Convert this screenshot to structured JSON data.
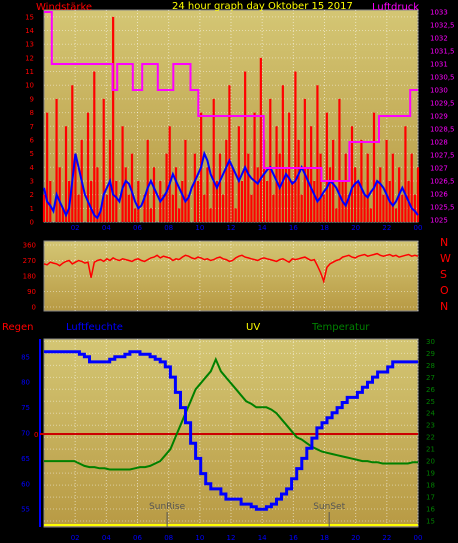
{
  "colors": {
    "wind": "#ff0000",
    "pressure": "#ff00ff",
    "direction": "#ff0000",
    "humidity": "#0000ff",
    "uv": "#ffff00",
    "temperature": "#008000",
    "rain": "#ff0000",
    "plot_bg_top": "#d4c674",
    "plot_bg_bottom": "#b89a44"
  },
  "labels": {
    "windstarke": "Windstärke",
    "title": "24 hour graph day   Oktober 15 2017",
    "luftdruck": "Luftdruck",
    "regen": "Regen",
    "luftfeuchte": "Luftfeuchte",
    "uv": "UV",
    "temperatur": "Temperatur",
    "sunrise": "SunRise",
    "sunset": "SunSet",
    "compass": [
      "N",
      "W",
      "S",
      "O",
      "N"
    ],
    "rain_zero": "0"
  },
  "chart_data": [
    {
      "type": "line",
      "id": "wind_pressure",
      "title": "24 hour graph day   Oktober 15 2017",
      "x_ticks": [
        "02",
        "04",
        "06",
        "08",
        "10",
        "12",
        "14",
        "16",
        "18",
        "20",
        "22",
        "00"
      ],
      "x_range_hours": [
        0,
        24
      ],
      "left_axis": {
        "label": "Windstärke",
        "ticks": [
          0,
          1,
          2,
          3,
          4,
          5,
          6,
          7,
          8,
          9,
          10,
          11,
          12,
          13,
          14,
          15
        ],
        "ylim": [
          0,
          15.5
        ]
      },
      "right_axis": {
        "label": "Luftdruck",
        "ticks": [
          "1025",
          "1025,5",
          "1026",
          "1026,5",
          "1027",
          "1027,5",
          "1028",
          "1028,5",
          "1029",
          "1029,5",
          "1030",
          "1030,5",
          "1031",
          "1031,5",
          "1032",
          "1032,5",
          "1033"
        ],
        "ylim": [
          1025,
          1033
        ]
      },
      "series": [
        {
          "name": "Windstärke",
          "axis": "left",
          "style": "gust",
          "values": [
            2,
            8,
            3,
            0,
            9,
            4,
            1,
            7,
            3,
            10,
            5,
            2,
            6,
            0,
            8,
            3,
            11,
            4,
            1,
            9,
            2,
            6,
            15,
            3,
            0,
            7,
            4,
            2,
            5,
            1,
            3,
            0,
            2,
            6,
            1,
            4,
            0,
            3,
            2,
            5,
            7,
            2,
            4,
            1,
            3,
            6,
            2,
            0,
            5,
            3,
            8,
            2,
            4,
            1,
            9,
            3,
            5,
            2,
            6,
            10,
            4,
            1,
            7,
            3,
            11,
            5,
            2,
            8,
            4,
            12,
            6,
            3,
            9,
            2,
            7,
            5,
            10,
            4,
            8,
            3,
            11,
            6,
            2,
            9,
            4,
            7,
            3,
            10,
            5,
            2,
            8,
            4,
            6,
            1,
            9,
            3,
            5,
            2,
            7,
            4,
            3,
            6,
            2,
            5,
            1,
            8,
            3,
            4,
            2,
            6,
            3,
            5,
            1,
            4,
            2,
            7,
            3,
            5,
            2,
            4
          ]
        },
        {
          "name": "Windstärke Mittel",
          "axis": "left",
          "style": "mean",
          "values": [
            2.5,
            1.5,
            1.2,
            0.8,
            2,
            1.5,
            1,
            0.5,
            1,
            3,
            5,
            4,
            3,
            2,
            1.5,
            1,
            0.5,
            0.3,
            0.8,
            2,
            2.5,
            3,
            2,
            1.8,
            1.5,
            2.5,
            3,
            2.8,
            2.2,
            1.5,
            1,
            1.2,
            1.8,
            2.5,
            3,
            2.5,
            2,
            1.5,
            1.8,
            2.2,
            2.8,
            3.5,
            3,
            2.5,
            2,
            1.5,
            1.8,
            2.5,
            3,
            3.5,
            4,
            5,
            4.5,
            3.5,
            3,
            2.5,
            3,
            3.5,
            4,
            4.5,
            4,
            3.5,
            3,
            3.5,
            4,
            3.5,
            3.2,
            3,
            2.8,
            3.2,
            3.5,
            3.8,
            4,
            3.5,
            3,
            2.5,
            3,
            3.5,
            3.2,
            2.8,
            3,
            3.5,
            4,
            3.5,
            3,
            2.5,
            2,
            1.5,
            1.8,
            2.2,
            2.5,
            3,
            2.8,
            2.5,
            2,
            1.5,
            1.2,
            1.8,
            2.5,
            2.8,
            3,
            2.5,
            2,
            1.8,
            2.2,
            2.5,
            3,
            2.8,
            2.5,
            2,
            1.5,
            1.2,
            1.5,
            2,
            2.5,
            2,
            1.5,
            1,
            0.8,
            0.5
          ]
        },
        {
          "name": "Luftdruck",
          "axis": "right",
          "style": "pressure",
          "x": [
            0,
            0.5,
            0.5,
            4.4,
            4.4,
            4.7,
            4.7,
            5.7,
            5.7,
            6.3,
            6.3,
            7.3,
            7.3,
            8.3,
            8.3,
            9.4,
            9.4,
            9.9,
            9.9,
            10.4,
            10.4,
            14.1,
            14.1,
            17.8,
            17.8,
            19.6,
            19.6,
            21.5,
            21.5,
            23.5,
            23.5,
            24
          ],
          "values": [
            1033,
            1033,
            1031,
            1031,
            1030,
            1030,
            1031,
            1031,
            1030,
            1030,
            1031,
            1031,
            1030,
            1030,
            1031,
            1031,
            1030,
            1030,
            1029,
            1029,
            1029,
            1029,
            1027,
            1027,
            1026.5,
            1026.5,
            1028,
            1028,
            1029,
            1029,
            1030,
            1030
          ]
        }
      ]
    },
    {
      "type": "line",
      "id": "wind_direction",
      "left_axis": {
        "ticks": [
          0,
          90,
          180,
          270,
          360
        ],
        "ylim": [
          0,
          360
        ]
      },
      "right_labels": [
        "N",
        "W",
        "S",
        "O",
        "N"
      ],
      "series": [
        {
          "name": "Windrichtung",
          "values": [
            250,
            245,
            260,
            255,
            250,
            240,
            255,
            265,
            270,
            250,
            260,
            270,
            265,
            255,
            260,
            170,
            260,
            270,
            275,
            265,
            280,
            270,
            285,
            275,
            270,
            280,
            275,
            270,
            265,
            275,
            280,
            270,
            265,
            275,
            285,
            290,
            300,
            285,
            295,
            290,
            285,
            270,
            280,
            275,
            290,
            300,
            295,
            285,
            280,
            290,
            285,
            275,
            280,
            270,
            275,
            285,
            290,
            280,
            275,
            265,
            270,
            285,
            295,
            300,
            290,
            285,
            280,
            275,
            270,
            280,
            285,
            280,
            275,
            270,
            265,
            275,
            280,
            270,
            260,
            280,
            275,
            280,
            285,
            290,
            280,
            270,
            275,
            240,
            200,
            150,
            230,
            250,
            260,
            270,
            275,
            290,
            295,
            300,
            290,
            285,
            295,
            300,
            305,
            295,
            300,
            305,
            310,
            300,
            295,
            300,
            305,
            295,
            300,
            290,
            295,
            300,
            305,
            295,
            300,
            295
          ]
        }
      ]
    },
    {
      "type": "line",
      "id": "humidity_temp_uv",
      "x_ticks": [
        "02",
        "04",
        "06",
        "08",
        "10",
        "12",
        "14",
        "16",
        "18",
        "20",
        "22",
        "00"
      ],
      "left_axis": {
        "label": "Luftfeuchte",
        "ticks": [
          55,
          60,
          65,
          70,
          75,
          80,
          85
        ],
        "ylim": [
          51.5,
          88.5
        ]
      },
      "right_axis": {
        "label": "Temperatur",
        "ticks": [
          15,
          16,
          17,
          18,
          19,
          20,
          21,
          22,
          23,
          24,
          25,
          26,
          27,
          28,
          29,
          30
        ],
        "ylim": [
          14.5,
          30.2
        ]
      },
      "rain_axis": {
        "label": "Regen",
        "zero_label": "0"
      },
      "annotations": [
        {
          "label": "SunRise",
          "x_hour": 7.9
        },
        {
          "label": "SunSet",
          "x_hour": 18.3
        }
      ],
      "series": [
        {
          "name": "Luftfeuchte",
          "axis": "left",
          "values": [
            86,
            86,
            86,
            86,
            86,
            86,
            86,
            85.5,
            85,
            84,
            84,
            84,
            84,
            84.5,
            85,
            85,
            85.5,
            86,
            86,
            85.5,
            85.5,
            85,
            84.5,
            84,
            83,
            81,
            78,
            75,
            72,
            68,
            65,
            62,
            60,
            59,
            59,
            58,
            57,
            57,
            57,
            56,
            56,
            55.5,
            55,
            55,
            55.5,
            56,
            57,
            58,
            59,
            61,
            63,
            65,
            67,
            69,
            71,
            72,
            73,
            74,
            75,
            76,
            77,
            77,
            78,
            79,
            80,
            81,
            82,
            82,
            83,
            84,
            84,
            84,
            84,
            84,
            84
          ]
        },
        {
          "name": "Temperatur",
          "axis": "right",
          "values": [
            20,
            20,
            20,
            20,
            20,
            20,
            20,
            19.8,
            19.6,
            19.5,
            19.5,
            19.4,
            19.4,
            19.3,
            19.3,
            19.3,
            19.3,
            19.3,
            19.4,
            19.5,
            19.5,
            19.6,
            19.8,
            20,
            20.5,
            21,
            22,
            23,
            24,
            25,
            26,
            26.5,
            27,
            27.5,
            28.5,
            27.5,
            27,
            26.5,
            26,
            25.5,
            25,
            24.8,
            24.5,
            24.5,
            24.5,
            24.3,
            24,
            23.5,
            23,
            22.5,
            22,
            21.8,
            21.5,
            21.2,
            21,
            20.8,
            20.7,
            20.6,
            20.5,
            20.4,
            20.3,
            20.2,
            20.1,
            20,
            20,
            19.9,
            19.9,
            19.8,
            19.8,
            19.8,
            19.8,
            19.8,
            19.8,
            19.9,
            19.9
          ]
        },
        {
          "name": "Regen",
          "axis": "rain",
          "values": [
            0
          ]
        }
      ]
    }
  ]
}
